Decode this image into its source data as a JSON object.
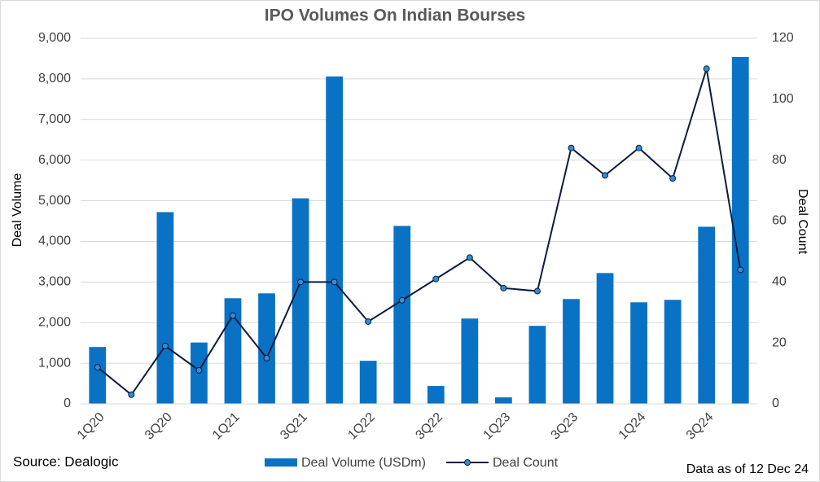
{
  "chart_data": {
    "type": "bar_line",
    "title": "IPO Volumes On Indian Bourses",
    "categories": [
      "1Q20",
      null,
      "3Q20",
      null,
      "1Q21",
      null,
      "3Q21",
      null,
      "1Q22",
      null,
      "3Q22",
      null,
      "1Q23",
      null,
      "3Q23",
      null,
      "1Q24",
      null,
      "3Q24",
      null
    ],
    "series": [
      {
        "name": "Deal Volume (USDm)",
        "type": "bar",
        "color": "#0a72c4",
        "values": [
          1400,
          0,
          4720,
          1510,
          2600,
          2720,
          5060,
          8060,
          1060,
          4380,
          440,
          2100,
          160,
          1920,
          2580,
          3220,
          2500,
          2560,
          4360,
          8540
        ]
      },
      {
        "name": "Deal Count",
        "type": "line",
        "axis": "y2",
        "color": "#0d1b3e",
        "marker_color": "#2e8fd6",
        "values": [
          12,
          3,
          19,
          11,
          29,
          15,
          40,
          40,
          27,
          34,
          41,
          48,
          38,
          37,
          84,
          75,
          84,
          74,
          110,
          44
        ]
      }
    ],
    "ylabel": "Deal Volume",
    "y2label": "Deal Count",
    "ylim": [
      0,
      9000
    ],
    "yticks": [
      0,
      {
        "value": 1000,
        "label": "1,000"
      },
      {
        "value": 2000,
        "label": "2,000"
      },
      {
        "value": 3000,
        "label": "3,000"
      },
      {
        "value": 4000,
        "label": "4,000"
      },
      {
        "value": 5000,
        "label": "5,000"
      },
      {
        "value": 6000,
        "label": "6,000"
      },
      {
        "value": 7000,
        "label": "7,000"
      },
      {
        "value": 8000,
        "label": "8,000"
      },
      {
        "value": 9000,
        "label": "9,000"
      }
    ],
    "y2lim": [
      0,
      120
    ],
    "y2ticks": [
      0,
      20,
      40,
      60,
      80,
      100,
      120
    ],
    "grid": true,
    "legend": "bottom",
    "source": "Source: Dealogic",
    "note": "Data as of 12 Dec 24"
  }
}
